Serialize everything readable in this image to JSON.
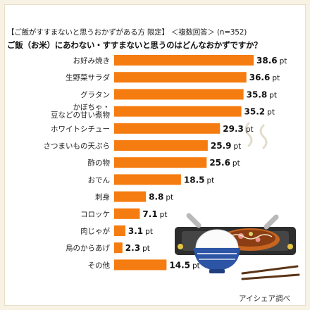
{
  "header": {
    "bracket_title": "【ご飯がすすまないと思うおかずがある方 限定】",
    "question_type": "＜複数回答＞",
    "sample": "(n=352)",
    "question": "ご飯（お米）にあわない・すすまないと思うのはどんなおかずですか？"
  },
  "source": "アイシェア調べ",
  "colors": {
    "bar": "#f57c10",
    "background": "#f7f2e4"
  },
  "chart_data": {
    "type": "bar",
    "orientation": "horizontal",
    "title": "ご飯（お米）にあわない・すすまないと思うのはどんなおかずですか？",
    "categories": [
      "お好み焼き",
      "生野菜サラダ",
      "グラタン",
      [
        "かぼちゃ・",
        "豆などの甘い煮物"
      ],
      "ホワイトシチュー",
      "さつまいもの天ぷら",
      "酢の物",
      "おでん",
      "刺身",
      "コロッケ",
      "肉じゃが",
      "鳥のからあげ",
      "その他"
    ],
    "values": [
      38.6,
      36.6,
      35.8,
      35.2,
      29.3,
      25.9,
      25.6,
      18.5,
      8.8,
      7.1,
      3.1,
      2.3,
      14.5
    ],
    "value_labels": [
      "38.6",
      "36.6",
      "35.8",
      "35.2",
      "29.3",
      "25.9",
      "25.6",
      "18.5",
      "8.8",
      "7.1",
      "3.1",
      "2.3",
      "14.5"
    ],
    "unit": "pt",
    "xlim": [
      0,
      40
    ],
    "grid": false,
    "legend": "none"
  }
}
